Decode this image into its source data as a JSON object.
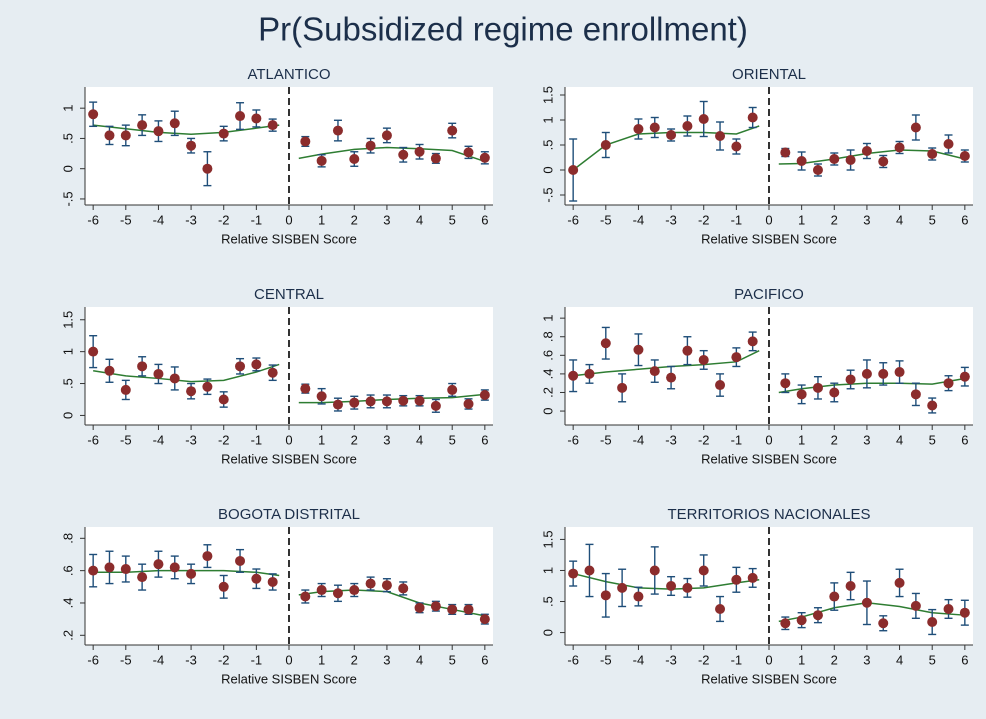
{
  "title": "Pr(Subsidized regime enrollment)",
  "chart_data": [
    {
      "type": "scatter",
      "title": "ATLANTICO",
      "x_label": "Relative SISBEN Score",
      "x": [
        -6,
        -5.5,
        -5,
        -4.5,
        -4,
        -3.5,
        -3,
        -2.5,
        -2,
        -1.5,
        -1,
        -0.5,
        0.5,
        1,
        1.5,
        2,
        2.5,
        3,
        3.5,
        4,
        4.5,
        5,
        5.5,
        6
      ],
      "values": [
        0.9,
        0.55,
        0.55,
        0.72,
        0.62,
        0.75,
        0.38,
        0,
        0.58,
        0.87,
        0.83,
        0.72,
        0.45,
        0.13,
        0.63,
        0.16,
        0.38,
        0.55,
        0.23,
        0.28,
        0.17,
        0.63,
        0.27,
        0.18
      ],
      "errors": [
        0.2,
        0.15,
        0.17,
        0.17,
        0.17,
        0.2,
        0.12,
        0.28,
        0.12,
        0.22,
        0.14,
        0.1,
        0.08,
        0.1,
        0.17,
        0.12,
        0.12,
        0.12,
        0.12,
        0.12,
        0.08,
        0.12,
        0.1,
        0.1
      ],
      "fit": [
        {
          "x": [
            -6,
            -5,
            -4,
            -3,
            -2,
            -1,
            -0.3
          ],
          "values": [
            0.72,
            0.66,
            0.6,
            0.57,
            0.6,
            0.67,
            0.72
          ]
        },
        {
          "x": [
            0.3,
            1,
            2,
            3,
            4,
            5,
            6
          ],
          "values": [
            0.17,
            0.24,
            0.32,
            0.35,
            0.33,
            0.3,
            0.12
          ]
        }
      ],
      "cutoff": 0,
      "color": "#8b2c2c",
      "error_color": "#1f4e79",
      "fit_color": "#2e7d32",
      "xlim": [
        -6.25,
        6.25
      ],
      "xticks": [
        -6,
        -5,
        -4,
        -3,
        -2,
        -1,
        0,
        1,
        2,
        3,
        4,
        5,
        6
      ],
      "ylim": [
        -0.6,
        1.35
      ],
      "yticks": [
        {
          "value": -0.5,
          "label": "-.5"
        },
        0,
        {
          "value": 0.5,
          "label": ".5"
        },
        1
      ]
    },
    {
      "type": "scatter",
      "title": "ORIENTAL",
      "x_label": "Relative SISBEN Score",
      "x": [
        -6,
        -5,
        -4,
        -3.5,
        -3,
        -2.5,
        -2,
        -1.5,
        -1,
        -0.5,
        0.5,
        1,
        1.5,
        2,
        2.5,
        3,
        3.5,
        4,
        4.5,
        5,
        5.5,
        6
      ],
      "values": [
        0,
        0.5,
        0.82,
        0.85,
        0.7,
        0.88,
        1.02,
        0.68,
        0.47,
        1.05,
        0.35,
        0.18,
        0,
        0.22,
        0.2,
        0.38,
        0.17,
        0.45,
        0.85,
        0.32,
        0.52,
        0.28
      ],
      "errors": [
        0.62,
        0.25,
        0.2,
        0.2,
        0.12,
        0.2,
        0.35,
        0.28,
        0.15,
        0.2,
        0.08,
        0.18,
        0.12,
        0.12,
        0.2,
        0.15,
        0.12,
        0.12,
        0.25,
        0.12,
        0.18,
        0.12
      ],
      "fit": [
        {
          "x": [
            -6,
            -5,
            -4,
            -3,
            -2,
            -1,
            -0.3
          ],
          "values": [
            0,
            0.5,
            0.72,
            0.75,
            0.75,
            0.72,
            0.88
          ]
        },
        {
          "x": [
            0.3,
            1,
            2,
            3,
            4,
            5,
            6
          ],
          "values": [
            0.12,
            0.13,
            0.22,
            0.33,
            0.4,
            0.38,
            0.22
          ]
        }
      ],
      "cutoff": 0,
      "color": "#8b2c2c",
      "error_color": "#1f4e79",
      "fit_color": "#2e7d32",
      "xlim": [
        -6.25,
        6.25
      ],
      "xticks": [
        -6,
        -5,
        -4,
        -3,
        -2,
        -1,
        0,
        1,
        2,
        3,
        4,
        5,
        6
      ],
      "ylim": [
        -0.7,
        1.66
      ],
      "yticks": [
        {
          "value": -0.5,
          "label": "-.5"
        },
        0,
        {
          "value": 0.5,
          "label": ".5"
        },
        1,
        1.5
      ]
    },
    {
      "type": "scatter",
      "title": "CENTRAL",
      "x_label": "Relative SISBEN Score",
      "x": [
        -6,
        -5.5,
        -5,
        -4.5,
        -4,
        -3.5,
        -3,
        -2.5,
        -2,
        -1.5,
        -1,
        -0.5,
        0.5,
        1,
        1.5,
        2,
        2.5,
        3,
        3.5,
        4,
        4.5,
        5,
        5.5,
        6
      ],
      "values": [
        1.0,
        0.7,
        0.4,
        0.77,
        0.65,
        0.58,
        0.38,
        0.45,
        0.25,
        0.77,
        0.8,
        0.67,
        0.42,
        0.3,
        0.17,
        0.2,
        0.22,
        0.22,
        0.23,
        0.23,
        0.15,
        0.4,
        0.18,
        0.32
      ],
      "errors": [
        0.25,
        0.18,
        0.15,
        0.15,
        0.15,
        0.18,
        0.12,
        0.12,
        0.12,
        0.12,
        0.1,
        0.12,
        0.07,
        0.12,
        0.1,
        0.1,
        0.1,
        0.1,
        0.08,
        0.08,
        0.1,
        0.1,
        0.08,
        0.08
      ],
      "fit": [
        {
          "x": [
            -6,
            -5,
            -4,
            -3,
            -2,
            -1,
            -0.3
          ],
          "values": [
            0.7,
            0.62,
            0.58,
            0.53,
            0.55,
            0.68,
            0.8
          ]
        },
        {
          "x": [
            0.3,
            1,
            2,
            3,
            4,
            5,
            6
          ],
          "values": [
            0.2,
            0.2,
            0.22,
            0.25,
            0.27,
            0.28,
            0.33
          ]
        }
      ],
      "cutoff": 0,
      "color": "#8b2c2c",
      "error_color": "#1f4e79",
      "fit_color": "#2e7d32",
      "xlim": [
        -6.25,
        6.25
      ],
      "xticks": [
        -6,
        -5,
        -4,
        -3,
        -2,
        -1,
        0,
        1,
        2,
        3,
        4,
        5,
        6
      ],
      "ylim": [
        -0.15,
        1.7
      ],
      "yticks": [
        0,
        {
          "value": 0.5,
          "label": ".5"
        },
        1,
        1.5
      ]
    },
    {
      "type": "scatter",
      "title": "PACIFICO",
      "x_label": "Relative SISBEN Score",
      "x": [
        -6,
        -5.5,
        -5,
        -4.5,
        -4,
        -3.5,
        -3,
        -2.5,
        -2,
        -1.5,
        -1,
        -0.5,
        0.5,
        1,
        1.5,
        2,
        2.5,
        3,
        3.5,
        4,
        4.5,
        5,
        5.5,
        6
      ],
      "values": [
        0.38,
        0.4,
        0.73,
        0.25,
        0.66,
        0.43,
        0.36,
        0.65,
        0.55,
        0.28,
        0.58,
        0.75,
        0.3,
        0.18,
        0.25,
        0.2,
        0.34,
        0.4,
        0.4,
        0.42,
        0.18,
        0.06,
        0.3,
        0.37
      ],
      "errors": [
        0.17,
        0.1,
        0.17,
        0.15,
        0.17,
        0.12,
        0.12,
        0.15,
        0.1,
        0.12,
        0.1,
        0.1,
        0.1,
        0.1,
        0.12,
        0.1,
        0.1,
        0.15,
        0.12,
        0.12,
        0.12,
        0.08,
        0.08,
        0.1
      ],
      "fit": [
        {
          "x": [
            -6,
            -5,
            -4,
            -3,
            -2,
            -1,
            -0.3
          ],
          "values": [
            0.38,
            0.42,
            0.45,
            0.48,
            0.5,
            0.53,
            0.65
          ]
        },
        {
          "x": [
            0.3,
            1,
            2,
            3,
            4,
            5,
            6
          ],
          "values": [
            0.2,
            0.24,
            0.28,
            0.3,
            0.3,
            0.29,
            0.35
          ]
        }
      ],
      "cutoff": 0,
      "color": "#8b2c2c",
      "error_color": "#1f4e79",
      "fit_color": "#2e7d32",
      "xlim": [
        -6.25,
        6.25
      ],
      "xticks": [
        -6,
        -5,
        -4,
        -3,
        -2,
        -1,
        0,
        1,
        2,
        3,
        4,
        5,
        6
      ],
      "ylim": [
        -0.15,
        1.12
      ],
      "yticks": [
        0,
        {
          "value": 0.2,
          "label": ".2"
        },
        {
          "value": 0.4,
          "label": ".4"
        },
        {
          "value": 0.6,
          "label": ".6"
        },
        {
          "value": 0.8,
          "label": ".8"
        },
        1
      ]
    },
    {
      "type": "scatter",
      "title": "BOGOTA DISTRITAL",
      "x_label": "Relative SISBEN Score",
      "x": [
        -6,
        -5.5,
        -5,
        -4.5,
        -4,
        -3.5,
        -3,
        -2.5,
        -2,
        -1.5,
        -1,
        -0.5,
        0.5,
        1,
        1.5,
        2,
        2.5,
        3,
        3.5,
        4,
        4.5,
        5,
        5.5,
        6
      ],
      "values": [
        0.6,
        0.62,
        0.61,
        0.56,
        0.64,
        0.62,
        0.58,
        0.69,
        0.5,
        0.66,
        0.55,
        0.53,
        0.44,
        0.48,
        0.46,
        0.48,
        0.52,
        0.51,
        0.49,
        0.37,
        0.38,
        0.36,
        0.36,
        0.3
      ],
      "errors": [
        0.1,
        0.1,
        0.08,
        0.08,
        0.08,
        0.07,
        0.06,
        0.07,
        0.07,
        0.07,
        0.06,
        0.05,
        0.04,
        0.04,
        0.05,
        0.04,
        0.04,
        0.04,
        0.04,
        0.03,
        0.03,
        0.03,
        0.03,
        0.03
      ],
      "fit": [
        {
          "x": [
            -6,
            -5,
            -4,
            -3,
            -2,
            -1,
            -0.3
          ],
          "values": [
            0.59,
            0.59,
            0.6,
            0.6,
            0.6,
            0.59,
            0.57
          ]
        },
        {
          "x": [
            0.3,
            1,
            2,
            3,
            4,
            5,
            6
          ],
          "values": [
            0.45,
            0.47,
            0.48,
            0.47,
            0.4,
            0.36,
            0.32
          ]
        }
      ],
      "cutoff": 0,
      "color": "#8b2c2c",
      "error_color": "#1f4e79",
      "fit_color": "#2e7d32",
      "xlim": [
        -6.25,
        6.25
      ],
      "xticks": [
        -6,
        -5,
        -4,
        -3,
        -2,
        -1,
        0,
        1,
        2,
        3,
        4,
        5,
        6
      ],
      "ylim": [
        0.14,
        0.87
      ],
      "yticks": [
        {
          "value": 0.2,
          "label": ".2"
        },
        {
          "value": 0.4,
          "label": ".4"
        },
        {
          "value": 0.6,
          "label": ".6"
        },
        {
          "value": 0.8,
          "label": ".8"
        }
      ]
    },
    {
      "type": "scatter",
      "title": "TERRITORIOS NACIONALES",
      "x_label": "Relative SISBEN Score",
      "x": [
        -6,
        -5.5,
        -5,
        -4.5,
        -4,
        -3.5,
        -3,
        -2.5,
        -2,
        -1.5,
        -1,
        -0.5,
        0.5,
        1,
        1.5,
        2,
        2.5,
        3,
        3.5,
        4,
        4.5,
        5,
        5.5,
        6
      ],
      "values": [
        0.95,
        1.0,
        0.6,
        0.72,
        0.58,
        1.0,
        0.75,
        0.72,
        1.0,
        0.38,
        0.85,
        0.88,
        0.15,
        0.2,
        0.28,
        0.58,
        0.75,
        0.48,
        0.15,
        0.8,
        0.43,
        0.17,
        0.38,
        0.32
      ],
      "errors": [
        0.2,
        0.42,
        0.35,
        0.3,
        0.15,
        0.38,
        0.15,
        0.15,
        0.25,
        0.2,
        0.2,
        0.15,
        0.1,
        0.12,
        0.12,
        0.22,
        0.22,
        0.35,
        0.12,
        0.22,
        0.2,
        0.2,
        0.15,
        0.2
      ],
      "fit": [
        {
          "x": [
            -6,
            -5,
            -4,
            -3,
            -2,
            -1,
            -0.3
          ],
          "values": [
            0.95,
            0.82,
            0.72,
            0.7,
            0.72,
            0.8,
            0.85
          ]
        },
        {
          "x": [
            0.3,
            1,
            2,
            3,
            4,
            5,
            6
          ],
          "values": [
            0.18,
            0.25,
            0.4,
            0.48,
            0.42,
            0.32,
            0.28
          ]
        }
      ],
      "cutoff": 0,
      "color": "#8b2c2c",
      "error_color": "#1f4e79",
      "fit_color": "#2e7d32",
      "xlim": [
        -6.25,
        6.25
      ],
      "xticks": [
        -6,
        -5,
        -4,
        -3,
        -2,
        -1,
        0,
        1,
        2,
        3,
        4,
        5,
        6
      ],
      "ylim": [
        -0.2,
        1.7
      ],
      "yticks": [
        0,
        {
          "value": 0.5,
          "label": ".5"
        },
        1,
        1.5
      ]
    }
  ]
}
